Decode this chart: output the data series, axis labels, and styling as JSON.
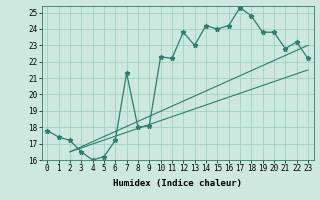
{
  "xlabel": "Humidex (Indice chaleur)",
  "bg_color": "#cce8df",
  "line_color": "#2e7d6e",
  "grid_color": "#99ccbb",
  "xlim": [
    -0.5,
    23.5
  ],
  "ylim": [
    16,
    25.4
  ],
  "main_x": [
    0,
    1,
    2,
    3,
    4,
    5,
    6,
    7,
    8,
    9,
    10,
    11,
    12,
    13,
    14,
    15,
    16,
    17,
    18,
    19,
    20,
    21,
    22,
    23
  ],
  "main_y": [
    17.8,
    17.4,
    17.2,
    16.5,
    16.0,
    16.2,
    17.2,
    21.3,
    18.0,
    18.1,
    22.3,
    22.2,
    23.8,
    23.0,
    24.2,
    24.0,
    24.2,
    25.3,
    24.8,
    23.8,
    23.8,
    22.8,
    23.2,
    22.2
  ],
  "line1_x": [
    2,
    23
  ],
  "line1_y": [
    16.5,
    23.0
  ],
  "line2_x": [
    2,
    23
  ],
  "line2_y": [
    16.5,
    21.5
  ],
  "xtick_vals": [
    0,
    1,
    2,
    3,
    4,
    5,
    6,
    7,
    8,
    9,
    10,
    11,
    12,
    13,
    14,
    15,
    16,
    17,
    18,
    19,
    20,
    21,
    22,
    23
  ],
  "xtick_labels": [
    "0",
    "1",
    "2",
    "3",
    "4",
    "5",
    "6",
    "7",
    "8",
    "9",
    "10",
    "11",
    "12",
    "13",
    "14",
    "15",
    "16",
    "17",
    "18",
    "19",
    "20",
    "21",
    "22",
    "23"
  ],
  "ytick_vals": [
    16,
    17,
    18,
    19,
    20,
    21,
    22,
    23,
    24,
    25
  ],
  "ytick_labels": [
    "16",
    "17",
    "18",
    "19",
    "20",
    "21",
    "22",
    "23",
    "24",
    "25"
  ],
  "tick_fontsize": 5.5,
  "xlabel_fontsize": 6.5
}
